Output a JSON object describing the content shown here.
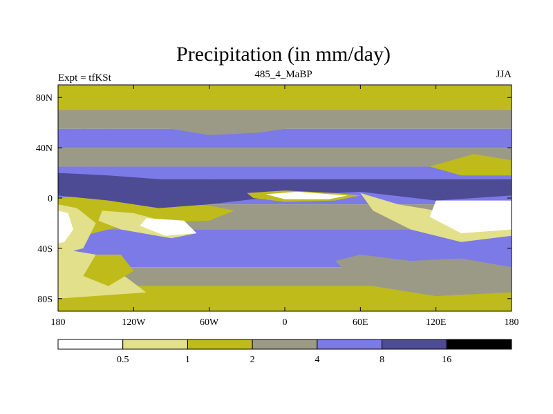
{
  "chart_data": {
    "type": "heatmap",
    "title": "Precipitation (in mm/day)",
    "subtitle_left": "Expt = tfKSt",
    "subtitle_center": "485_4_MaBP",
    "subtitle_right": "JJA",
    "x_axis": {
      "range": [
        -180,
        180
      ],
      "ticks": [
        {
          "value": -180,
          "label": "180"
        },
        {
          "value": -120,
          "label": "120W"
        },
        {
          "value": -60,
          "label": "60W"
        },
        {
          "value": 0,
          "label": "0"
        },
        {
          "value": 60,
          "label": "60E"
        },
        {
          "value": 120,
          "label": "120E"
        },
        {
          "value": 180,
          "label": "180"
        }
      ]
    },
    "y_axis": {
      "range": [
        -90,
        90
      ],
      "ticks": [
        {
          "value": 80,
          "label": "80N"
        },
        {
          "value": 40,
          "label": "40N"
        },
        {
          "value": 0,
          "label": "0"
        },
        {
          "value": -40,
          "label": "40S"
        },
        {
          "value": -80,
          "label": "80S"
        }
      ]
    },
    "colorbar": {
      "levels": [
        {
          "label": "0.5",
          "color": "#ffffff"
        },
        {
          "label": "1",
          "color": "#e2e08a"
        },
        {
          "label": "2",
          "color": "#bfbb1b"
        },
        {
          "label": "4",
          "color": "#9b9a86"
        },
        {
          "label": "8",
          "color": "#7c7ae6"
        },
        {
          "label": "16",
          "color": "#4d4b94"
        },
        {
          "label": "",
          "color": "#000000"
        }
      ]
    },
    "bands": [
      {
        "lat_top": 90,
        "lat_bottom": 70,
        "class": 2
      },
      {
        "lat_top": 70,
        "lat_bottom": 55,
        "class": 3
      },
      {
        "lat_top": 55,
        "lat_bottom": 40,
        "class": 4
      },
      {
        "lat_top": 40,
        "lat_bottom": 25,
        "class": 3
      },
      {
        "lat_top": 25,
        "lat_bottom": 15,
        "class": 4
      },
      {
        "lat_top": 15,
        "lat_bottom": 5,
        "class": 5
      },
      {
        "lat_top": 5,
        "lat_bottom": -5,
        "class": 4
      },
      {
        "lat_top": -5,
        "lat_bottom": -25,
        "class": 3
      },
      {
        "lat_top": -25,
        "lat_bottom": -55,
        "class": 4
      },
      {
        "lat_top": -55,
        "lat_bottom": -70,
        "class": 3
      },
      {
        "lat_top": -70,
        "lat_bottom": -90,
        "class": 2
      }
    ],
    "patches": [
      {
        "points": [
          [
            -180,
            0
          ],
          [
            -160,
            2
          ],
          [
            -130,
            0
          ],
          [
            -100,
            -3
          ],
          [
            -60,
            -6
          ],
          [
            -40,
            -10
          ],
          [
            -60,
            -18
          ],
          [
            -120,
            -20
          ],
          [
            -160,
            -30
          ],
          [
            -180,
            -30
          ]
        ],
        "class": 2
      },
      {
        "points": [
          [
            -180,
            -5
          ],
          [
            -165,
            -8
          ],
          [
            -150,
            -20
          ],
          [
            -160,
            -40
          ],
          [
            -180,
            -45
          ]
        ],
        "class": 1
      },
      {
        "points": [
          [
            -180,
            -10
          ],
          [
            -172,
            -12
          ],
          [
            -168,
            -25
          ],
          [
            -175,
            -35
          ],
          [
            -180,
            -36
          ]
        ],
        "class": 0
      },
      {
        "points": [
          [
            -180,
            -40
          ],
          [
            -150,
            -45
          ],
          [
            -130,
            -60
          ],
          [
            -110,
            -75
          ],
          [
            -180,
            -80
          ]
        ],
        "class": 1
      },
      {
        "points": [
          [
            -150,
            -45
          ],
          [
            -130,
            -45
          ],
          [
            -120,
            -58
          ],
          [
            -140,
            -70
          ],
          [
            -160,
            -62
          ]
        ],
        "class": 2
      },
      {
        "points": [
          [
            -145,
            -10
          ],
          [
            -120,
            -12
          ],
          [
            -90,
            -20
          ],
          [
            -70,
            -28
          ],
          [
            -90,
            -32
          ],
          [
            -130,
            -25
          ],
          [
            -148,
            -18
          ]
        ],
        "class": 1
      },
      {
        "points": [
          [
            -110,
            -16
          ],
          [
            -80,
            -18
          ],
          [
            -70,
            -28
          ],
          [
            -95,
            -30
          ],
          [
            -115,
            -22
          ]
        ],
        "class": 0
      },
      {
        "points": [
          [
            -180,
            20
          ],
          [
            -140,
            18
          ],
          [
            -60,
            12
          ],
          [
            0,
            10
          ],
          [
            60,
            15
          ],
          [
            120,
            12
          ],
          [
            180,
            15
          ],
          [
            180,
            2
          ],
          [
            120,
            -2
          ],
          [
            60,
            5
          ],
          [
            0,
            2
          ],
          [
            -60,
            -5
          ],
          [
            -100,
            -8
          ],
          [
            -140,
            -2
          ],
          [
            -180,
            2
          ]
        ],
        "class": 5
      },
      {
        "points": [
          [
            -30,
            4
          ],
          [
            0,
            6
          ],
          [
            40,
            4
          ],
          [
            60,
            2
          ],
          [
            40,
            -2
          ],
          [
            0,
            -3
          ],
          [
            -25,
            0
          ]
        ],
        "class": 2
      },
      {
        "points": [
          [
            -15,
            3
          ],
          [
            10,
            5
          ],
          [
            50,
            2
          ],
          [
            35,
            -1
          ],
          [
            0,
            -1
          ]
        ],
        "class": 0
      },
      {
        "points": [
          [
            60,
            4
          ],
          [
            90,
            -5
          ],
          [
            120,
            -10
          ],
          [
            170,
            -10
          ],
          [
            180,
            -15
          ],
          [
            180,
            -30
          ],
          [
            140,
            -35
          ],
          [
            100,
            -25
          ],
          [
            70,
            -10
          ]
        ],
        "class": 1
      },
      {
        "points": [
          [
            120,
            -2
          ],
          [
            180,
            -2
          ],
          [
            180,
            -25
          ],
          [
            140,
            -28
          ],
          [
            115,
            -15
          ]
        ],
        "class": 0
      },
      {
        "points": [
          [
            40,
            -50
          ],
          [
            60,
            -45
          ],
          [
            100,
            -50
          ],
          [
            140,
            -48
          ],
          [
            180,
            -55
          ],
          [
            180,
            -75
          ],
          [
            120,
            -78
          ],
          [
            70,
            -70
          ],
          [
            50,
            -60
          ]
        ],
        "class": 3
      },
      {
        "points": [
          [
            115,
            25
          ],
          [
            150,
            35
          ],
          [
            180,
            30
          ],
          [
            180,
            18
          ],
          [
            140,
            18
          ]
        ],
        "class": 2
      },
      {
        "points": [
          [
            -180,
            62
          ],
          [
            -120,
            60
          ],
          [
            -60,
            50
          ],
          [
            -20,
            52
          ],
          [
            0,
            55
          ],
          [
            60,
            60
          ],
          [
            120,
            58
          ],
          [
            180,
            60
          ],
          [
            180,
            70
          ],
          [
            -180,
            70
          ]
        ],
        "class": 3
      },
      {
        "points": [
          [
            -180,
            50
          ],
          [
            -140,
            48
          ],
          [
            -100,
            42
          ],
          [
            -80,
            45
          ],
          [
            -100,
            50
          ],
          [
            -160,
            55
          ]
        ],
        "class": 4
      }
    ]
  }
}
